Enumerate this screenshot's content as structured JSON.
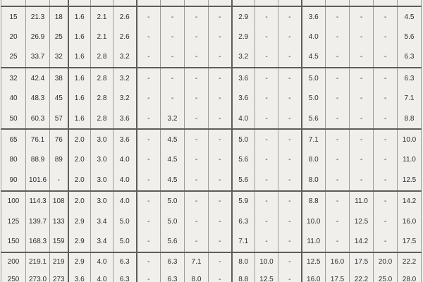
{
  "colors": {
    "background": "#f1efec",
    "grid_light": "#9e9a96",
    "grid_dark": "#5f5c59",
    "text": "#2d2d2d"
  },
  "table": {
    "header_cells": [
      "",
      "",
      "",
      "",
      "",
      "",
      "",
      "",
      "",
      "",
      "",
      "",
      "",
      "",
      "",
      "",
      "",
      ""
    ],
    "row_groups": [
      {
        "rows": [
          [
            "15",
            "21.3",
            "18",
            "1.6",
            "2.1",
            "2.6",
            "-",
            "-",
            "-",
            "-",
            "2.9",
            "-",
            "-",
            "3.6",
            "-",
            "-",
            "-",
            "4.5"
          ],
          [
            "20",
            "26.9",
            "25",
            "1.6",
            "2.1",
            "2.6",
            "-",
            "-",
            "-",
            "-",
            "2.9",
            "-",
            "-",
            "4.0",
            "-",
            "-",
            "-",
            "5.6"
          ],
          [
            "25",
            "33.7",
            "32",
            "1.6",
            "2.8",
            "3.2",
            "-",
            "-",
            "-",
            "-",
            "3.2",
            "-",
            "-",
            "4.5",
            "-",
            "-",
            "-",
            "6.3"
          ]
        ]
      },
      {
        "rows": [
          [
            "32",
            "42.4",
            "38",
            "1.6",
            "2.8",
            "3.2",
            "-",
            "-",
            "-",
            "-",
            "3.6",
            "-",
            "-",
            "5.0",
            "-",
            "-",
            "-",
            "6.3"
          ],
          [
            "40",
            "48.3",
            "45",
            "1.6",
            "2.8",
            "3.2",
            "-",
            "-",
            "-",
            "-",
            "3.6",
            "-",
            "-",
            "5.0",
            "-",
            "-",
            "-",
            "7.1"
          ],
          [
            "50",
            "60.3",
            "57",
            "1.6",
            "2.8",
            "3.6",
            "-",
            "3.2",
            "-",
            "-",
            "4.0",
            "-",
            "-",
            "5.6",
            "-",
            "-",
            "-",
            "8.8"
          ]
        ]
      },
      {
        "rows": [
          [
            "65",
            "76.1",
            "76",
            "2.0",
            "3.0",
            "3.6",
            "-",
            "4.5",
            "-",
            "-",
            "5.0",
            "-",
            "-",
            "7.1",
            "-",
            "-",
            "-",
            "10.0"
          ],
          [
            "80",
            "88.9",
            "89",
            "2.0",
            "3.0",
            "4.0",
            "-",
            "4.5",
            "-",
            "-",
            "5.6",
            "-",
            "-",
            "8.0",
            "-",
            "-",
            "-",
            "11.0"
          ],
          [
            "90",
            "101.6",
            "-",
            "2.0",
            "3.0",
            "4.0",
            "-",
            "4.5",
            "-",
            "-",
            "5.6",
            "-",
            "-",
            "8.0",
            "-",
            "-",
            "-",
            "12.5"
          ]
        ]
      },
      {
        "rows": [
          [
            "100",
            "114.3",
            "108",
            "2.0",
            "3.0",
            "4.0",
            "-",
            "5.0",
            "-",
            "-",
            "5.9",
            "-",
            "-",
            "8.8",
            "-",
            "11.0",
            "-",
            "14.2"
          ],
          [
            "125",
            "139.7",
            "133",
            "2.9",
            "3.4",
            "5.0",
            "-",
            "5.0",
            "-",
            "-",
            "6.3",
            "-",
            "-",
            "10.0",
            "-",
            "12.5",
            "-",
            "16.0"
          ],
          [
            "150",
            "168.3",
            "159",
            "2.9",
            "3.4",
            "5.0",
            "-",
            "5.6",
            "-",
            "-",
            "7.1",
            "-",
            "-",
            "11.0",
            "-",
            "14.2",
            "-",
            "17.5"
          ]
        ]
      },
      {
        "rows": [
          [
            "200",
            "219.1",
            "219",
            "2.9",
            "4.0",
            "6.3",
            "-",
            "6.3",
            "7.1",
            "-",
            "8.0",
            "10.0",
            "-",
            "12.5",
            "16.0",
            "17.5",
            "20.0",
            "22.2"
          ],
          [
            "250",
            "273.0",
            "273",
            "3.6",
            "4.0",
            "6.3",
            "-",
            "6.3",
            "8.0",
            "-",
            "8.8",
            "12.5",
            "-",
            "16.0",
            "17.5",
            "22.2",
            "25.0",
            "28.0"
          ]
        ]
      }
    ]
  }
}
